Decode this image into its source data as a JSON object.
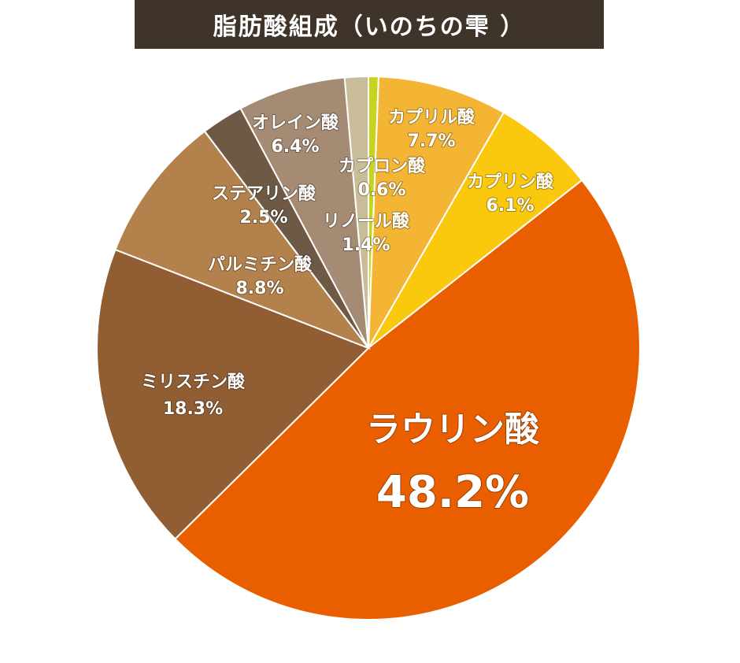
{
  "title": "脂肪酸組成（いのちの雫 ）",
  "chart_data": {
    "type": "pie",
    "title": "脂肪酸組成（いのちの雫 ）",
    "slices": [
      {
        "name": "カプロン酸",
        "value": 0.6,
        "label": "0.6%",
        "color": "#c6d31f"
      },
      {
        "name": "カプリル酸",
        "value": 7.7,
        "label": "7.7%",
        "color": "#f4b434"
      },
      {
        "name": "カプリン酸",
        "value": 6.1,
        "label": "6.1%",
        "color": "#fac80d"
      },
      {
        "name": "ラウリン酸",
        "value": 48.2,
        "label": "48.2%",
        "color": "#e95f00"
      },
      {
        "name": "ミリスチン酸",
        "value": 18.3,
        "label": "18.3%",
        "color": "#915e33"
      },
      {
        "name": "パルミチン酸",
        "value": 8.8,
        "label": "8.8%",
        "color": "#b3814b"
      },
      {
        "name": "ステアリン酸",
        "value": 2.5,
        "label": "2.5%",
        "color": "#6e5a44"
      },
      {
        "name": "オレイン酸",
        "value": 6.4,
        "label": "6.4%",
        "color": "#a58b73"
      },
      {
        "name": "リノール酸",
        "value": 1.4,
        "label": "1.4%",
        "color": "#c9bc98"
      }
    ]
  }
}
